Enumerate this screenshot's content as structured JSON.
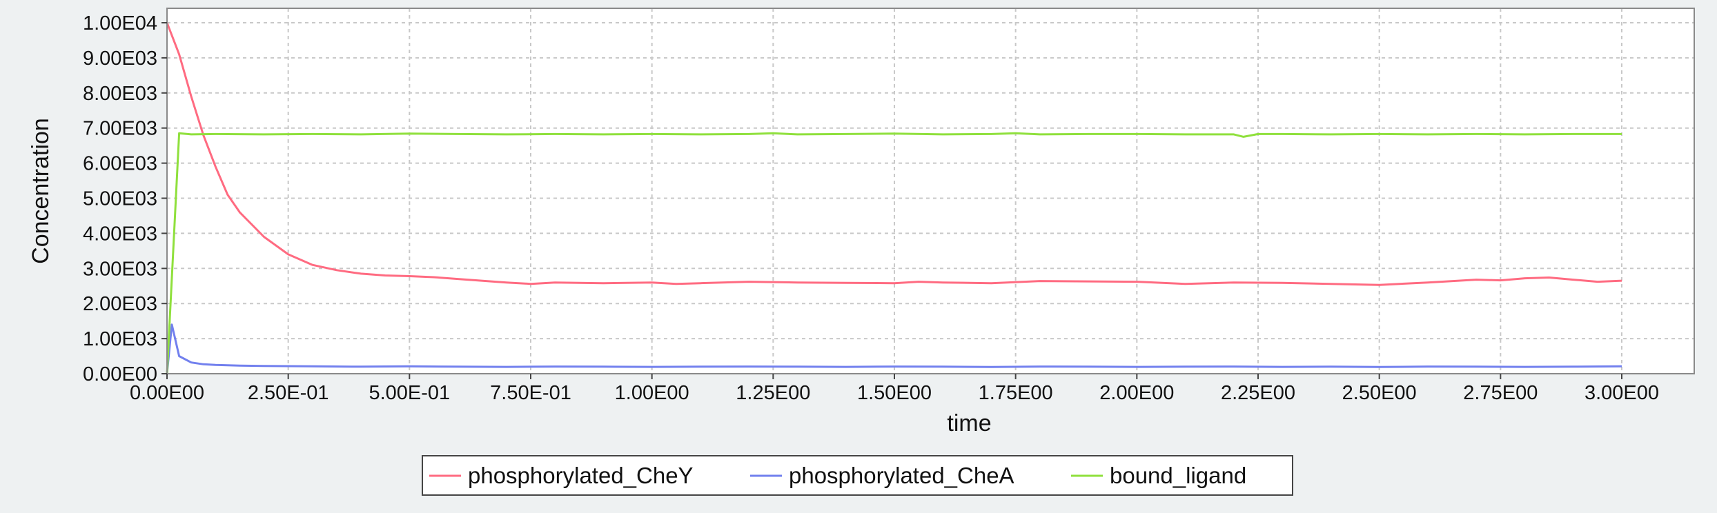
{
  "chart_data": {
    "type": "line",
    "title": "",
    "xlabel": "time",
    "ylabel": "Concentration",
    "xlim": [
      0,
      3.1
    ],
    "ylim": [
      0,
      10000
    ],
    "grid": true,
    "legend_position": "bottom-center",
    "x_ticks": [
      0,
      0.25,
      0.5,
      0.75,
      1.0,
      1.25,
      1.5,
      1.75,
      2.0,
      2.25,
      2.5,
      2.75,
      3.0
    ],
    "x_tick_labels": [
      "0.00E00",
      "2.50E-01",
      "5.00E-01",
      "7.50E-01",
      "1.00E00",
      "1.25E00",
      "1.50E00",
      "1.75E00",
      "2.00E00",
      "2.25E00",
      "2.50E00",
      "2.75E00",
      "3.00E00"
    ],
    "y_ticks": [
      0,
      1000,
      2000,
      3000,
      4000,
      5000,
      6000,
      7000,
      8000,
      9000,
      10000
    ],
    "y_tick_labels": [
      "0.00E00",
      "1.00E03",
      "2.00E03",
      "3.00E03",
      "4.00E03",
      "5.00E03",
      "6.00E03",
      "7.00E03",
      "8.00E03",
      "9.00E03",
      "1.00E04"
    ],
    "series": [
      {
        "name": "phosphorylated_CheY",
        "color": "#ff6b81",
        "x": [
          0,
          0.025,
          0.05,
          0.075,
          0.1,
          0.125,
          0.15,
          0.2,
          0.25,
          0.3,
          0.35,
          0.4,
          0.45,
          0.5,
          0.55,
          0.6,
          0.7,
          0.75,
          0.8,
          0.9,
          1.0,
          1.05,
          1.1,
          1.2,
          1.3,
          1.4,
          1.5,
          1.55,
          1.6,
          1.7,
          1.8,
          1.9,
          2.0,
          2.1,
          2.2,
          2.3,
          2.4,
          2.5,
          2.6,
          2.7,
          2.75,
          2.8,
          2.85,
          2.9,
          2.95,
          3.0
        ],
        "y": [
          10000,
          9100,
          7900,
          6800,
          5900,
          5100,
          4600,
          3900,
          3400,
          3100,
          2950,
          2850,
          2800,
          2780,
          2750,
          2700,
          2600,
          2560,
          2600,
          2580,
          2600,
          2560,
          2580,
          2620,
          2600,
          2590,
          2580,
          2620,
          2600,
          2580,
          2640,
          2630,
          2620,
          2560,
          2600,
          2590,
          2560,
          2530,
          2600,
          2680,
          2660,
          2720,
          2740,
          2680,
          2620,
          2650
        ]
      },
      {
        "name": "phosphorylated_CheA",
        "color": "#7280ee",
        "x": [
          0,
          0.01,
          0.025,
          0.05,
          0.075,
          0.1,
          0.15,
          0.2,
          0.3,
          0.4,
          0.5,
          0.6,
          0.7,
          0.8,
          0.9,
          1.0,
          1.1,
          1.2,
          1.3,
          1.4,
          1.5,
          1.6,
          1.7,
          1.8,
          1.9,
          2.0,
          2.1,
          2.2,
          2.3,
          2.4,
          2.5,
          2.6,
          2.7,
          2.8,
          2.9,
          3.0
        ],
        "y": [
          0,
          1400,
          500,
          320,
          270,
          250,
          230,
          220,
          210,
          200,
          210,
          200,
          195,
          205,
          200,
          195,
          200,
          205,
          200,
          195,
          205,
          200,
          190,
          205,
          200,
          195,
          200,
          205,
          195,
          200,
          190,
          205,
          200,
          195,
          200,
          210
        ]
      },
      {
        "name": "bound_ligand",
        "color": "#8fe03c",
        "x": [
          0,
          0.025,
          0.05,
          0.1,
          0.2,
          0.3,
          0.4,
          0.5,
          0.6,
          0.7,
          0.8,
          0.9,
          1.0,
          1.1,
          1.2,
          1.25,
          1.3,
          1.4,
          1.5,
          1.6,
          1.7,
          1.75,
          1.8,
          1.9,
          2.0,
          2.1,
          2.2,
          2.22,
          2.25,
          2.3,
          2.4,
          2.5,
          2.6,
          2.7,
          2.8,
          2.9,
          3.0
        ],
        "y": [
          0,
          6850,
          6820,
          6830,
          6820,
          6830,
          6820,
          6840,
          6830,
          6820,
          6830,
          6820,
          6830,
          6820,
          6830,
          6850,
          6820,
          6830,
          6840,
          6820,
          6830,
          6850,
          6820,
          6830,
          6830,
          6820,
          6820,
          6750,
          6830,
          6830,
          6820,
          6830,
          6820,
          6830,
          6820,
          6830,
          6830
        ]
      }
    ]
  }
}
